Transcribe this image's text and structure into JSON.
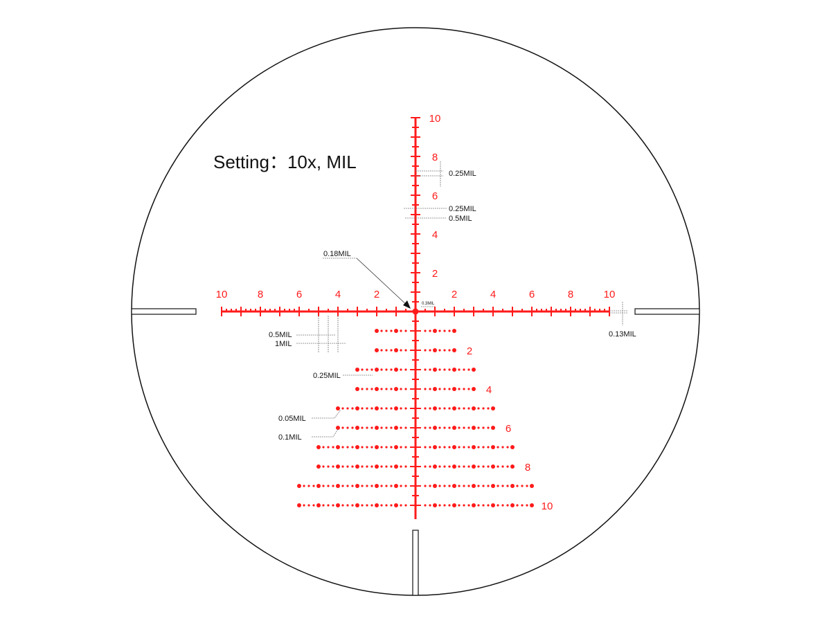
{
  "title": "Setting：10x, MIL",
  "colors": {
    "reticle": "#ff1a1a",
    "outline": "#111111",
    "annotation": "#111111"
  },
  "horizontal_labels": [
    "10",
    "8",
    "6",
    "4",
    "2",
    "2",
    "4",
    "6",
    "8",
    "10"
  ],
  "vertical_labels": [
    "10",
    "8",
    "6",
    "4",
    "2"
  ],
  "holdover_labels": [
    "2",
    "4",
    "6",
    "8",
    "10"
  ],
  "annotations": {
    "center_dot": "0.18MIL",
    "center_gap": "0.3MIL",
    "vert_tick_spacing": "0.25MIL",
    "vert_tick_width_short": "0.25MIL",
    "vert_tick_width_long": "0.5MIL",
    "horiz_half": "0.5MIL",
    "horiz_full": "1MIL",
    "line_thickness": "0.13MIL",
    "dot_spacing": "0.25MIL",
    "small_dot": "0.05MIL",
    "large_dot": "0.1MIL"
  }
}
